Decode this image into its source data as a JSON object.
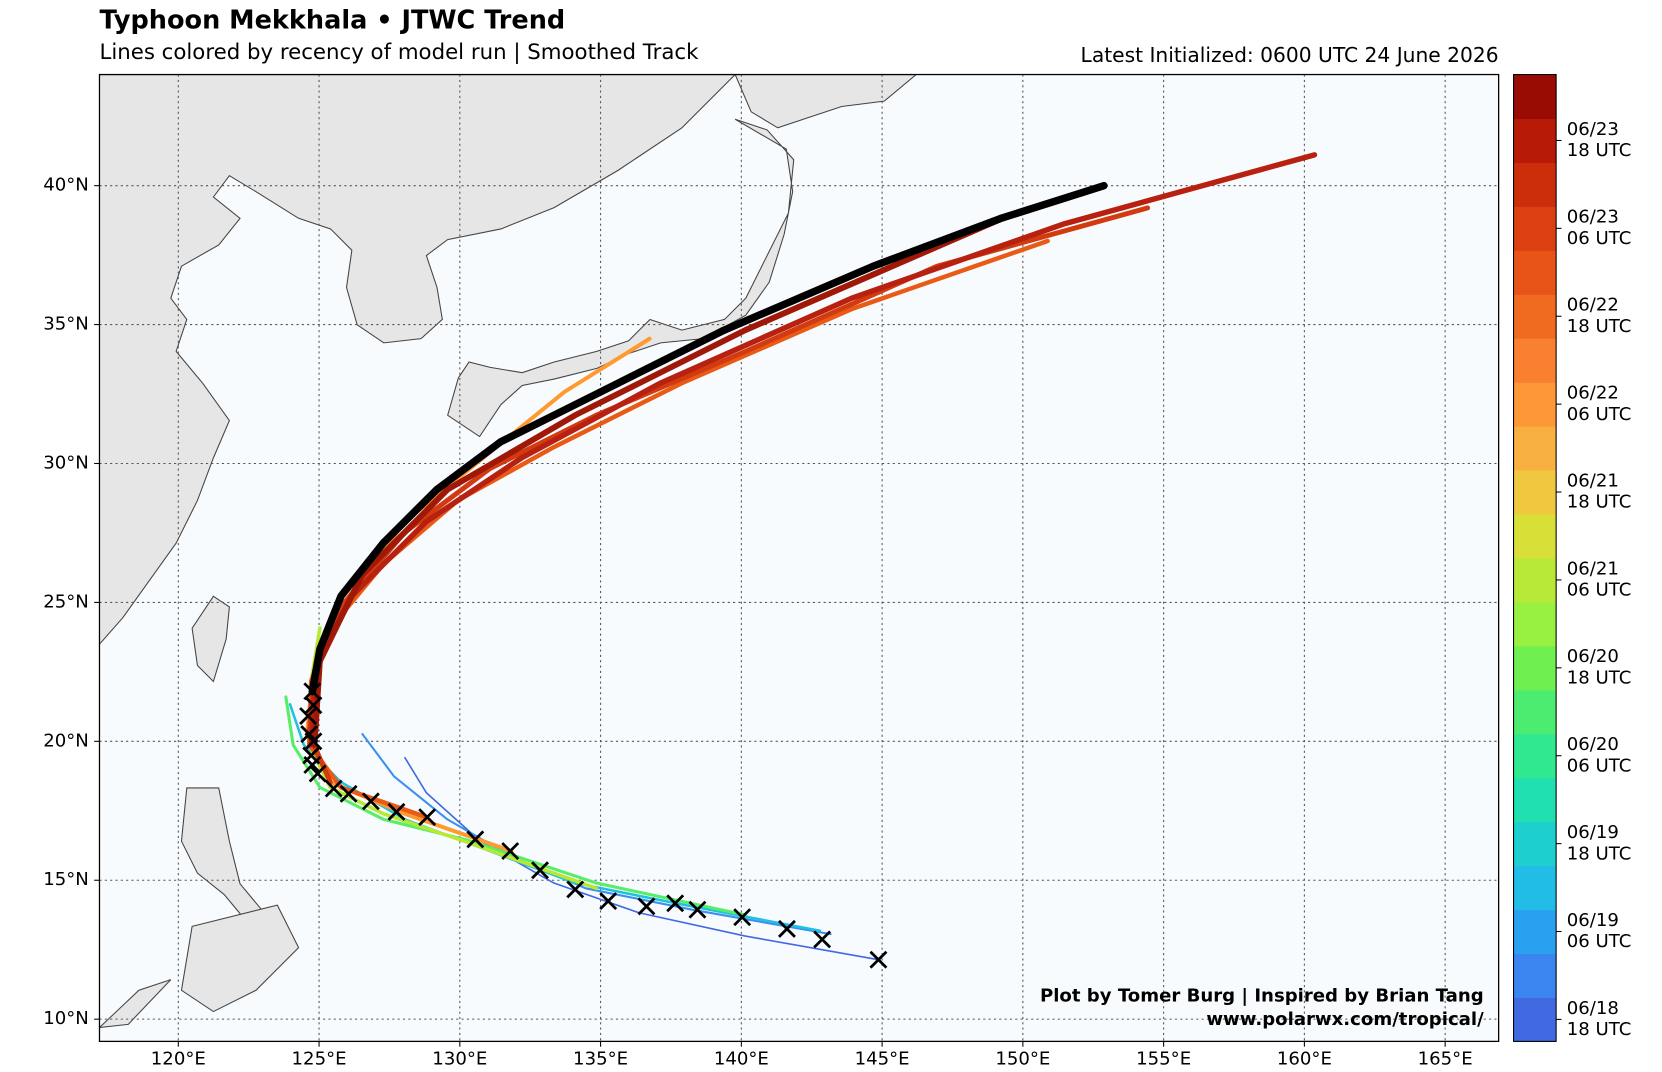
{
  "header": {
    "title": "Typhoon Mekkhala • JTWC Trend",
    "subtitle": "Lines colored by recency of model run | Smoothed Track",
    "latest": "Latest Initialized: 0600 UTC 24 June 2026"
  },
  "map": {
    "xlim": [
      117.2,
      166.9
    ],
    "ylim": [
      9.2,
      44.0
    ],
    "xticks": [
      {
        "value": 120,
        "label": "120°E"
      },
      {
        "value": 125,
        "label": "125°E"
      },
      {
        "value": 130,
        "label": "130°E"
      },
      {
        "value": 135,
        "label": "135°E"
      },
      {
        "value": 140,
        "label": "140°E"
      },
      {
        "value": 145,
        "label": "145°E"
      },
      {
        "value": 150,
        "label": "150°E"
      },
      {
        "value": 155,
        "label": "155°E"
      },
      {
        "value": 160,
        "label": "160°E"
      },
      {
        "value": 165,
        "label": "165°E"
      }
    ],
    "yticks": [
      {
        "value": 10,
        "label": "10°N"
      },
      {
        "value": 15,
        "label": "15°N"
      },
      {
        "value": 20,
        "label": "20°N"
      },
      {
        "value": 25,
        "label": "25°N"
      },
      {
        "value": 30,
        "label": "30°N"
      },
      {
        "value": 35,
        "label": "35°N"
      },
      {
        "value": 40,
        "label": "40°N"
      }
    ],
    "grid": true,
    "tracks": [
      {
        "color": "#4169e1",
        "lon": [
          144.87,
          140.14,
          136.36,
          133.34,
          130.7,
          128.81,
          128.05
        ],
        "lat": [
          12.14,
          12.99,
          13.83,
          14.9,
          16.43,
          18.15,
          19.41
        ]
      },
      {
        "color": "#3a8ff0",
        "lon": [
          143.17,
          138.25,
          134.47,
          131.83,
          129.56,
          127.67,
          126.54
        ],
        "lat": [
          13.06,
          13.94,
          14.71,
          15.86,
          17.19,
          18.73,
          20.26
        ]
      },
      {
        "color": "#20c0e0",
        "lon": [
          142.79,
          137.88,
          134.1,
          131.07,
          128.05,
          125.78,
          124.46,
          123.97
        ],
        "lat": [
          13.18,
          14.13,
          14.9,
          16.05,
          17.19,
          18.53,
          19.87,
          21.33
        ]
      },
      {
        "color": "#55ee66",
        "lon": [
          140.14,
          134.85,
          130.32,
          127.29,
          125.03,
          124.08,
          123.82
        ],
        "lat": [
          13.75,
          14.9,
          16.43,
          17.19,
          18.34,
          19.87,
          21.6
        ]
      },
      {
        "color": "#b8e830",
        "lon": [
          134.85,
          130.32,
          127.29,
          125.4,
          124.65,
          124.72,
          125.03
        ],
        "lat": [
          14.71,
          16.35,
          17.39,
          18.34,
          19.87,
          22.17,
          24.08
        ]
      },
      {
        "color": "#ff9a30",
        "lon": [
          131.83,
          128.05,
          125.4,
          124.57,
          124.76,
          125.78,
          128.05,
          131.07,
          133.72,
          136.74
        ],
        "lat": [
          16.05,
          17.39,
          18.53,
          20.26,
          22.17,
          24.85,
          27.91,
          30.4,
          32.58,
          34.49
        ]
      },
      {
        "color": "#e85a15",
        "lon": [
          128.81,
          125.78,
          124.65,
          124.72,
          125.4,
          127.29,
          129.94,
          133.34,
          137.88,
          143.92,
          150.88
        ],
        "lat": [
          17.27,
          18.34,
          19.87,
          22.17,
          24.08,
          26.38,
          28.68,
          30.59,
          32.89,
          35.56,
          38.01
        ]
      },
      {
        "color": "#d23a10",
        "lon": [
          125.4,
          124.65,
          124.84,
          125.78,
          128.05,
          131.07,
          134.85,
          140.14,
          146.95,
          154.43
        ],
        "lat": [
          18.53,
          20.26,
          22.55,
          24.85,
          27.53,
          29.82,
          31.74,
          34.03,
          37.1,
          39.2
        ]
      },
      {
        "color": "#b82010",
        "lon": [
          124.72,
          124.88,
          126.16,
          128.81,
          132.21,
          137.12,
          143.92,
          151.48,
          160.36
        ],
        "lat": [
          19.87,
          22.55,
          25.23,
          27.91,
          30.21,
          32.89,
          35.95,
          38.63,
          41.11
        ]
      },
      {
        "color": "#a01808",
        "lon": [
          124.84,
          125.03,
          126.54,
          129.56,
          134.1,
          140.14,
          149.52
        ],
        "lat": [
          19.87,
          22.94,
          26.0,
          29.06,
          31.74,
          34.8,
          38.93
        ]
      }
    ],
    "latest_track": {
      "color": "#000000",
      "lon": [
        124.76,
        125.03,
        125.78,
        127.29,
        129.18,
        131.45,
        134.85,
        139.39,
        144.68,
        149.21,
        152.88
      ],
      "lat": [
        21.79,
        23.32,
        25.23,
        27.15,
        29.06,
        30.78,
        32.5,
        34.8,
        37.1,
        38.82,
        40.0
      ]
    },
    "observed": {
      "lon": [
        144.87,
        142.87,
        141.62,
        140.03,
        138.44,
        137.65,
        136.63,
        135.27,
        134.1,
        132.85,
        131.79,
        130.55,
        128.84,
        127.75,
        126.84,
        126.05,
        125.52,
        124.95,
        124.76,
        124.72,
        124.8,
        124.65,
        124.61,
        124.8,
        124.76
      ],
      "lat": [
        12.14,
        12.87,
        13.25,
        13.67,
        13.94,
        14.17,
        14.06,
        14.25,
        14.67,
        15.36,
        16.05,
        16.47,
        17.27,
        17.46,
        17.84,
        18.11,
        18.3,
        18.84,
        19.15,
        19.49,
        20.0,
        20.26,
        20.91,
        21.3,
        21.8
      ]
    },
    "colorbar": {
      "colors": [
        "#4169e1",
        "#3a85f0",
        "#2aa0f0",
        "#22bde6",
        "#1ecfd0",
        "#20dfb0",
        "#30e890",
        "#4cec70",
        "#70f050",
        "#98f040",
        "#b8e838",
        "#d8e038",
        "#f0c840",
        "#f8b040",
        "#fc9838",
        "#f88030",
        "#f06a20",
        "#e85418",
        "#dc4010",
        "#cc2e0c",
        "#b81a08",
        "#980c04"
      ],
      "labels": [
        {
          "date": "06/18",
          "time": "18 UTC"
        },
        {
          "date": "06/19",
          "time": "06 UTC"
        },
        {
          "date": "06/19",
          "time": "18 UTC"
        },
        {
          "date": "06/20",
          "time": "06 UTC"
        },
        {
          "date": "06/20",
          "time": "18 UTC"
        },
        {
          "date": "06/21",
          "time": "06 UTC"
        },
        {
          "date": "06/21",
          "time": "18 UTC"
        },
        {
          "date": "06/22",
          "time": "06 UTC"
        },
        {
          "date": "06/22",
          "time": "18 UTC"
        },
        {
          "date": "06/23",
          "time": "06 UTC"
        },
        {
          "date": "06/23",
          "time": "18 UTC"
        }
      ]
    }
  },
  "credits": [
    "Plot by Tomer Burg | Inspired by Brian Tang",
    "www.polarwx.com/tropical/"
  ]
}
